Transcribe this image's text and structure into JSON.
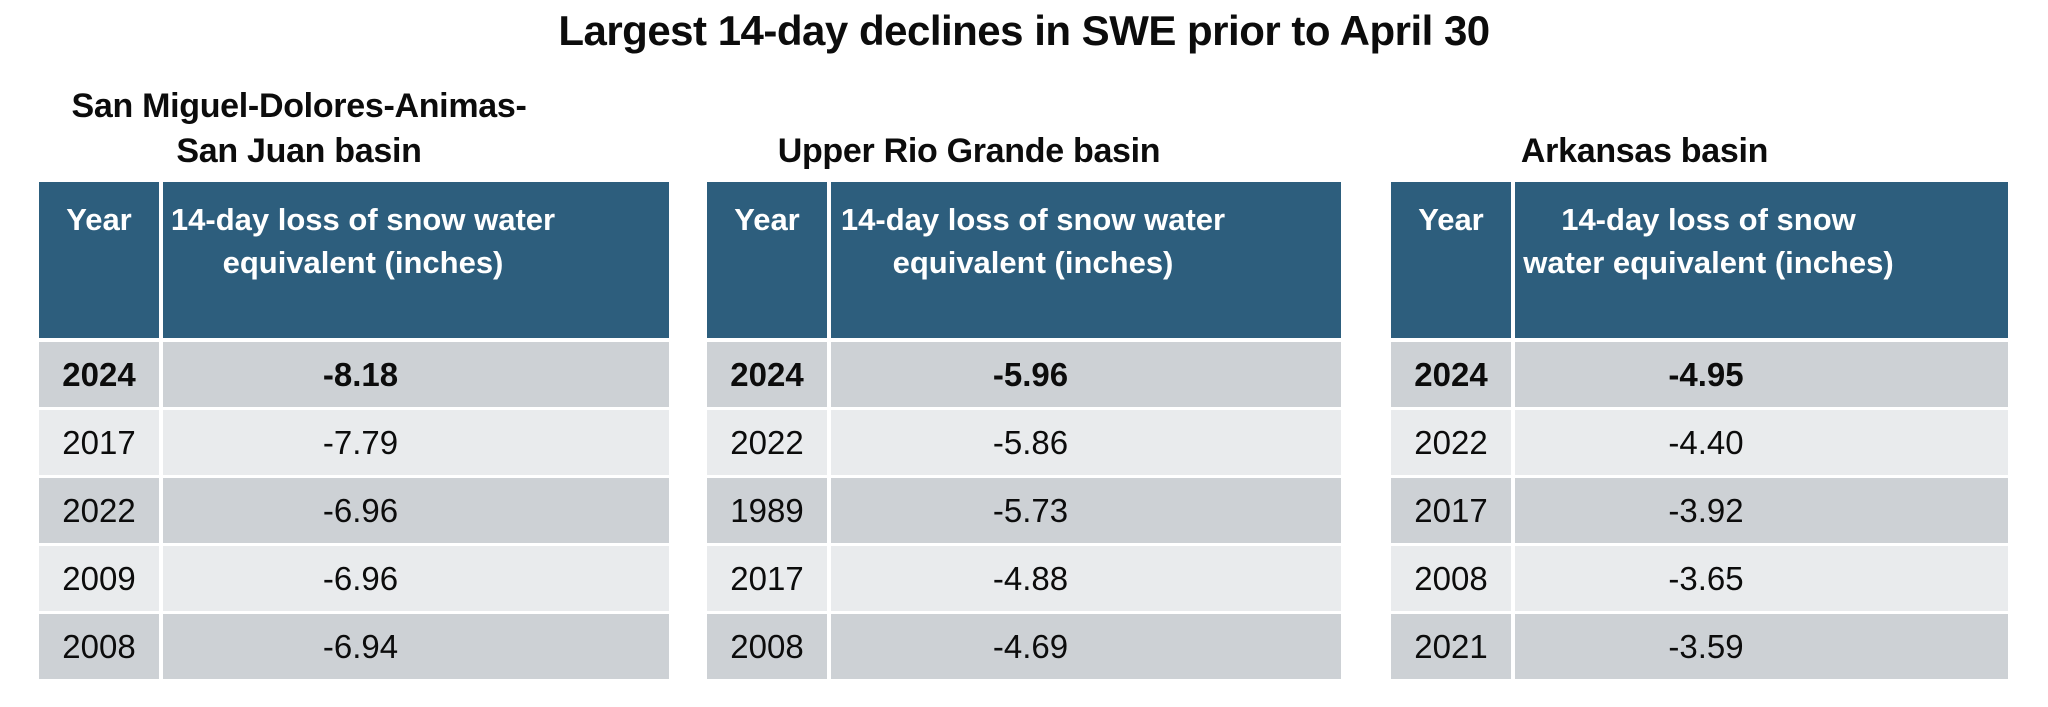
{
  "title": "Largest 14-day declines in SWE prior to April 30",
  "colors": {
    "header_blue": "#2d5e7d",
    "row_dark_gray": "#cdd1d5",
    "row_light_gray": "#e9ebed",
    "header_text": "#ffffff",
    "body_text": "#0c0c0c",
    "background": "#ffffff"
  },
  "tables": [
    {
      "caption": "San Miguel-Dolores-Animas-San Juan basin",
      "caption_lines": [
        "San Miguel-Dolores-Animas-",
        "San Juan basin"
      ],
      "col_year": "Year",
      "col_value": "14-day loss of snow water equivalent (inches)",
      "rows": [
        {
          "year": "2024",
          "value": "-8.18"
        },
        {
          "year": "2017",
          "value": "-7.79"
        },
        {
          "year": "2022",
          "value": "-6.96"
        },
        {
          "year": "2009",
          "value": "-6.96"
        },
        {
          "year": "2008",
          "value": "-6.94"
        }
      ]
    },
    {
      "caption": "Upper Rio Grande basin",
      "caption_lines": [
        "Upper Rio Grande basin"
      ],
      "col_year": "Year",
      "col_value": "14-day loss of snow water equivalent (inches)",
      "rows": [
        {
          "year": "2024",
          "value": "-5.96"
        },
        {
          "year": "2022",
          "value": "-5.86"
        },
        {
          "year": "1989",
          "value": "-5.73"
        },
        {
          "year": "2017",
          "value": "-4.88"
        },
        {
          "year": "2008",
          "value": "-4.69"
        }
      ]
    },
    {
      "caption": "Arkansas basin",
      "caption_lines": [
        "Arkansas basin"
      ],
      "col_year": "Year",
      "col_value": "14-day loss of snow water equivalent (inches)",
      "rows": [
        {
          "year": "2024",
          "value": "-4.95"
        },
        {
          "year": "2022",
          "value": "-4.40"
        },
        {
          "year": "2017",
          "value": "-3.92"
        },
        {
          "year": "2008",
          "value": "-3.65"
        },
        {
          "year": "2021",
          "value": "-3.59"
        }
      ]
    }
  ],
  "chart_data": [
    {
      "type": "table",
      "title": "San Miguel-Dolores-Animas-San Juan basin",
      "columns": [
        "Year",
        "14-day loss of snow water equivalent (inches)"
      ],
      "rows": [
        [
          2024,
          -8.18
        ],
        [
          2017,
          -7.79
        ],
        [
          2022,
          -6.96
        ],
        [
          2009,
          -6.96
        ],
        [
          2008,
          -6.94
        ]
      ],
      "highlight_row": "2024"
    },
    {
      "type": "table",
      "title": "Upper Rio Grande basin",
      "columns": [
        "Year",
        "14-day loss of snow water equivalent (inches)"
      ],
      "rows": [
        [
          2024,
          -5.96
        ],
        [
          2022,
          -5.86
        ],
        [
          1989,
          -5.73
        ],
        [
          2017,
          -4.88
        ],
        [
          2008,
          -4.69
        ]
      ],
      "highlight_row": "2024"
    },
    {
      "type": "table",
      "title": "Arkansas basin",
      "columns": [
        "Year",
        "14-day loss of snow water equivalent (inches)"
      ],
      "rows": [
        [
          2024,
          -4.95
        ],
        [
          2022,
          -4.4
        ],
        [
          2017,
          -3.92
        ],
        [
          2008,
          -3.65
        ],
        [
          2021,
          -3.59
        ]
      ],
      "highlight_row": "2024"
    }
  ]
}
